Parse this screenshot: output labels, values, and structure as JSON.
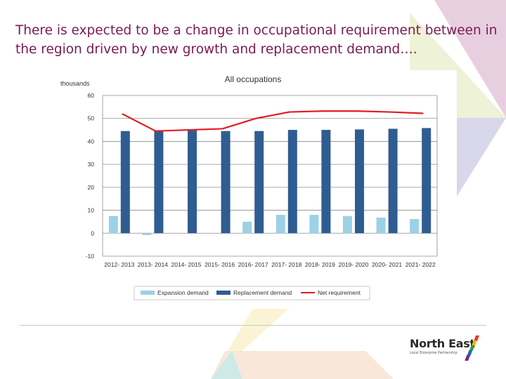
{
  "slide": {
    "title": "There is expected to be a change in occupational requirement between in the region driven by new growth and replacement demand…."
  },
  "logo": {
    "name": "North East",
    "tagline": "Local Enterprise Partnership",
    "mark_colors": [
      "#e33a2c",
      "#f7b500",
      "#2d9b48",
      "#1d6fb8",
      "#7a2a85"
    ]
  },
  "colors": {
    "title": "#7a1a55",
    "expansion": "#9dd1e6",
    "replacement": "#2f5d92",
    "net": "#e31b23",
    "bg_pink": "#e7cfe0",
    "bg_lime": "#eef2d6",
    "bg_lavender": "#d9d8ea",
    "bg_peach": "#f9e7d9",
    "bg_yellow": "#fbf4d4",
    "bg_teal": "#cdeae7"
  },
  "chart_data": {
    "type": "bar",
    "title": "All occupations",
    "ylabel": "thousands",
    "xlabel": "",
    "ylim": [
      -10,
      60
    ],
    "yticks": [
      -10,
      0,
      10,
      20,
      30,
      40,
      50,
      60
    ],
    "grid": true,
    "legend_position": "bottom",
    "categories": [
      "2012- 2013",
      "2013- 2014",
      "2014- 2015",
      "2015- 2016",
      "2016- 2017",
      "2017- 2018",
      "2018- 2019",
      "2019- 2020",
      "2020- 2021",
      "2021- 2022"
    ],
    "series": [
      {
        "name": "Expansion demand",
        "type": "bar",
        "values": [
          7.5,
          -0.8,
          0,
          0,
          5,
          8,
          8,
          7.5,
          6.8,
          6.2
        ]
      },
      {
        "name": "Replacement demand",
        "type": "bar",
        "values": [
          44.5,
          44.5,
          45,
          44.5,
          44.5,
          45,
          45,
          45.2,
          45.5,
          45.8
        ]
      },
      {
        "name": "Net requirement",
        "type": "line",
        "values": [
          52,
          44.5,
          45,
          45.5,
          50,
          52.8,
          53.2,
          53.2,
          52.8,
          52.2
        ]
      }
    ]
  }
}
